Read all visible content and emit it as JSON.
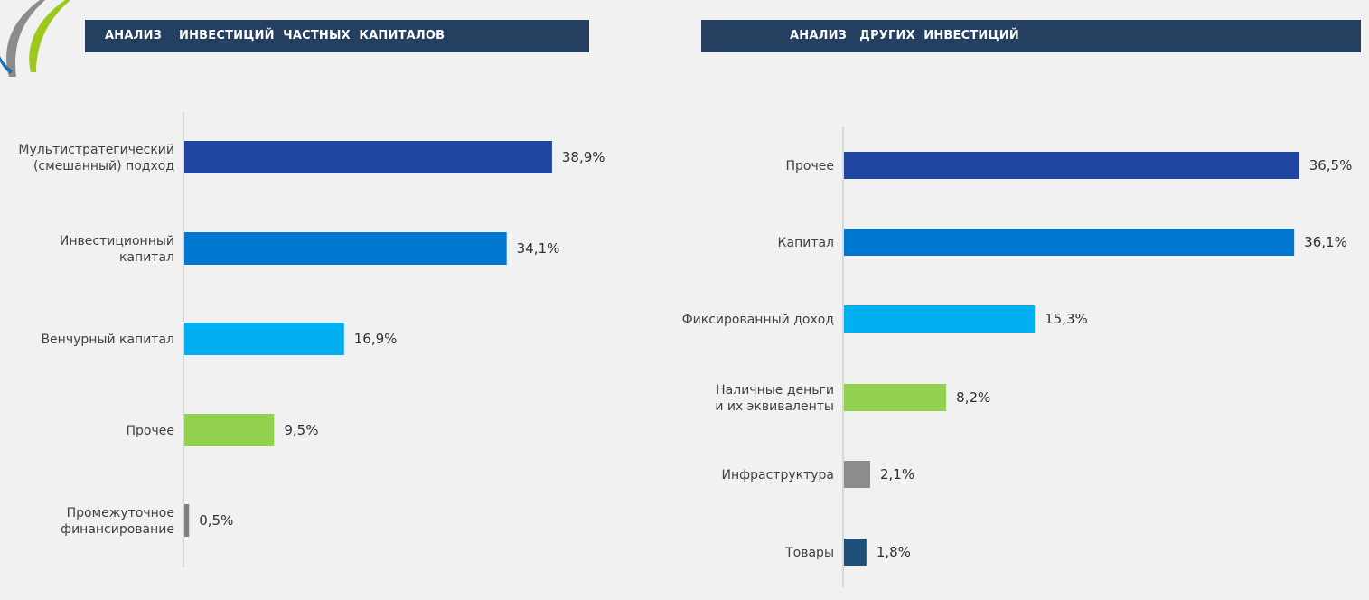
{
  "header_left": "АНАЛИЗ    ИНВЕСТИЦИЙ  ЧАСТНЫХ  КАПИТАЛОВ",
  "header_right": "АНАЛИЗ   ДРУГИХ  ИНВЕСТИЦИЙ",
  "chart_data": [
    {
      "type": "bar",
      "orientation": "horizontal",
      "title": "АНАЛИЗ    ИНВЕСТИЦИЙ  ЧАСТНЫХ  КАПИТАЛОВ",
      "categories": [
        [
          "Мультистратегический",
          "(смешанный) подход"
        ],
        [
          "Инвестиционный",
          "капитал"
        ],
        [
          "Венчурный  капитал"
        ],
        [
          "Прочее"
        ],
        [
          "Промежуточное",
          "финансирование"
        ]
      ],
      "values": [
        38.9,
        34.1,
        16.9,
        9.5,
        0.5
      ],
      "value_labels": [
        "38,9%",
        "34,1%",
        "16,9%",
        "9,5%",
        "0,5%"
      ],
      "colors": [
        "#1f45a0",
        "#0078d2",
        "#00b0f0",
        "#92d050",
        "#7f7f7f"
      ],
      "unit": "%",
      "xlim": [
        0,
        40
      ]
    },
    {
      "type": "bar",
      "orientation": "horizontal",
      "title": "АНАЛИЗ   ДРУГИХ  ИНВЕСТИЦИЙ",
      "categories": [
        [
          "Прочее"
        ],
        [
          "Капитал"
        ],
        [
          "Фиксированный  доход"
        ],
        [
          "Наличные  деньги",
          "и  их  эквиваленты"
        ],
        [
          "Инфраструктура"
        ],
        [
          "Товары"
        ]
      ],
      "values": [
        36.5,
        36.1,
        15.3,
        8.2,
        2.1,
        1.8
      ],
      "value_labels": [
        "36,5%",
        "36,1%",
        "15,3%",
        "8,2%",
        "2,1%",
        "1,8%"
      ],
      "colors": [
        "#1f45a0",
        "#0078d2",
        "#00b0f0",
        "#92d050",
        "#8c8c8c",
        "#1f4e79"
      ],
      "unit": "%",
      "xlim": [
        0,
        37
      ]
    }
  ]
}
